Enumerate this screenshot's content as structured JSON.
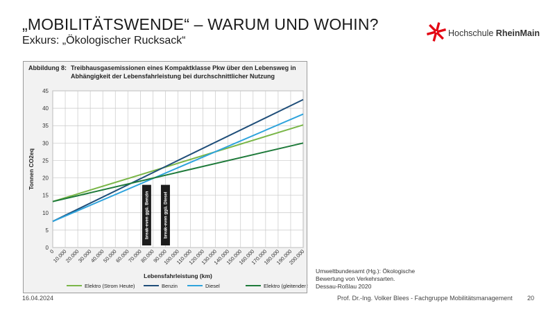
{
  "slide": {
    "title": "„MOBILITÄTSWENDE“ – WARUM UND WOHIN?",
    "subtitle": "Exkurs: „Ökologischer Rucksack“"
  },
  "logo": {
    "text_regular": "Hochschule ",
    "text_bold": "RheinMain",
    "color": "#e30613"
  },
  "figure": {
    "number": "Abbildung 8:",
    "caption": "Treibhausgasemissionen eines Kompaktklasse Pkw über den Lebensweg in Abhängigkeit der Lebensfahrleistung bei durchschnittlicher Nutzung"
  },
  "chart_data": {
    "type": "line",
    "xlabel": "Lebensfahrleistung (km)",
    "ylabel": "Tonnen CO2eq",
    "xlim": [
      0,
      200000
    ],
    "ylim": [
      0,
      45
    ],
    "x_ticks": [
      "0",
      "10.000",
      "20.000",
      "30.000",
      "40.000",
      "50.000",
      "60.000",
      "70.000",
      "80.000",
      "90.000",
      "100.000",
      "110.000",
      "120.000",
      "130.000",
      "140.000",
      "150.000",
      "160.000",
      "170.000",
      "180.000",
      "190.000",
      "200.000"
    ],
    "y_ticks": [
      "0",
      "5",
      "10",
      "15",
      "20",
      "25",
      "30",
      "35",
      "40",
      "45"
    ],
    "grid": true,
    "legend_position": "bottom",
    "series": [
      {
        "name": "Elektro (Strom Heute)",
        "color": "#7ab648",
        "x": [
          0,
          200000
        ],
        "y": [
          13.2,
          35.2
        ]
      },
      {
        "name": "Benzin",
        "color": "#1f4e79",
        "x": [
          0,
          200000
        ],
        "y": [
          7.5,
          42.5
        ]
      },
      {
        "name": "Diesel",
        "color": "#2ea3dc",
        "x": [
          0,
          200000
        ],
        "y": [
          7.5,
          38.3
        ]
      },
      {
        "name": "Elektro (gleitender Strommix)",
        "color": "#1e7a3a",
        "x": [
          0,
          200000
        ],
        "y": [
          13.2,
          30.0
        ]
      }
    ],
    "annotations": [
      {
        "text": "break-even ggü. Benzin",
        "x": 75000
      },
      {
        "text": "break-even ggü. Diesel",
        "x": 90000
      }
    ]
  },
  "source": {
    "line1": "Umweltbundesamt (Hg.): Ökologische",
    "line2": "Bewertung von Verkehrsarten.",
    "line3": "Dessau-Roßlau 2020"
  },
  "footer": {
    "date": "16.04.2024",
    "author": "Prof. Dr.-Ing. Volker Blees - Fachgruppe Mobilitätsmanagement",
    "page": "20"
  }
}
